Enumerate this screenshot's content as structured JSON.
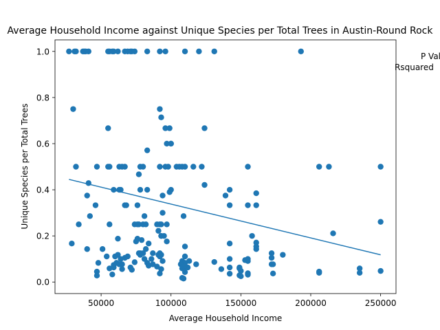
{
  "chart_data": {
    "type": "scatter",
    "title": "Average Household Income against Unique Species per Total Trees in Austin-Round Rock",
    "xlabel": "Average Household Income",
    "ylabel": "Unique Species per Total Trees",
    "xlim": [
      17000,
      261000
    ],
    "ylim": [
      -0.05,
      1.05
    ],
    "xticks": [
      50000,
      100000,
      150000,
      200000,
      250000
    ],
    "yticks": [
      0.0,
      0.2,
      0.4,
      0.6,
      0.8,
      1.0
    ],
    "xtick_labels": [
      "50000",
      "100000",
      "150000",
      "200000",
      "250000"
    ],
    "ytick_labels": [
      "0.0",
      "0.2",
      "0.4",
      "0.6",
      "0.8",
      "1.0"
    ],
    "annotations": [
      "P Value",
      "Rsquared"
    ],
    "grid": false,
    "marker_color": "#1f77b4",
    "line_color": "#1f77b4",
    "regression_line": {
      "x": [
        27000,
        250000
      ],
      "y": [
        0.445,
        0.118
      ]
    },
    "points": {
      "x": [
        27000,
        31000,
        32000,
        37000,
        38000,
        39000,
        41000,
        55000,
        56000,
        58000,
        59000,
        62000,
        67000,
        69000,
        71000,
        72000,
        74000,
        83000,
        92000,
        96000,
        110000,
        120000,
        131000,
        193000,
        30000,
        92000,
        93000,
        96000,
        99000,
        100000,
        55000,
        124000,
        83000,
        97000,
        100000,
        32000,
        47000,
        55000,
        56000,
        63000,
        65000,
        67000,
        78000,
        80000,
        92000,
        96000,
        98000,
        104000,
        106000,
        108000,
        110000,
        116000,
        122000,
        155000,
        206000,
        213000,
        250000,
        41000,
        77000,
        124000,
        59000,
        63000,
        64000,
        78000,
        83000,
        99000,
        100000,
        139000,
        142000,
        161000,
        40000,
        46000,
        67000,
        68000,
        94000,
        42000,
        76000,
        81000,
        94000,
        109000,
        142000,
        34000,
        56000,
        76000,
        77000,
        80000,
        82000,
        90000,
        92000,
        74000,
        93000,
        97000,
        155000,
        161000,
        216000,
        91000,
        93000,
        62000,
        76000,
        79000,
        84000,
        93000,
        95000,
        97000,
        29000,
        40000,
        158000,
        161000,
        75000,
        77000,
        80000,
        82000,
        87000,
        92000,
        110000,
        142000,
        161000,
        51000,
        54000,
        62000,
        78000,
        91000,
        93000,
        172000,
        180000,
        250000,
        60000,
        64000,
        67000,
        69000,
        78000,
        81000,
        86000,
        92000,
        108000,
        110000,
        113000,
        153000,
        155000,
        172000,
        48000,
        59000,
        61000,
        63000,
        65000,
        74000,
        83000,
        94000,
        108000,
        110000,
        118000,
        131000,
        142000,
        149000,
        161000,
        173000,
        56000,
        71000,
        84000,
        90000,
        107000,
        109000,
        112000,
        136000,
        149000,
        172000,
        59000,
        65000,
        72000,
        93000,
        108000,
        109000,
        110000,
        142000,
        150000,
        155000,
        206000,
        235000,
        250000,
        47000,
        58000,
        87000,
        92000,
        110000,
        142000,
        149000,
        155000,
        173000,
        206000,
        235000,
        47000,
        108000,
        109000,
        150000,
        155000
      ],
      "y": [
        1.0,
        1.0,
        1.0,
        1.0,
        1.0,
        1.0,
        1.0,
        1.0,
        1.0,
        1.0,
        1.0,
        1.0,
        1.0,
        1.0,
        1.0,
        1.0,
        1.0,
        1.0,
        1.0,
        1.0,
        1.0,
        1.0,
        1.0,
        1.0,
        0.75,
        0.75,
        0.714,
        0.667,
        0.667,
        0.6,
        0.667,
        0.667,
        0.571,
        0.6,
        0.6,
        0.5,
        0.5,
        0.5,
        0.5,
        0.5,
        0.5,
        0.5,
        0.5,
        0.5,
        0.5,
        0.5,
        0.5,
        0.5,
        0.5,
        0.5,
        0.5,
        0.5,
        0.5,
        0.5,
        0.5,
        0.5,
        0.5,
        0.429,
        0.467,
        0.421,
        0.4,
        0.4,
        0.4,
        0.4,
        0.4,
        0.39,
        0.4,
        0.375,
        0.4,
        0.385,
        0.375,
        0.333,
        0.333,
        0.333,
        0.375,
        0.286,
        0.333,
        0.286,
        0.3,
        0.286,
        0.333,
        0.25,
        0.25,
        0.25,
        0.25,
        0.25,
        0.25,
        0.25,
        0.25,
        0.25,
        0.25,
        0.25,
        0.333,
        0.333,
        0.211,
        0.222,
        0.2,
        0.188,
        0.188,
        0.182,
        0.167,
        0.2,
        0.2,
        0.176,
        0.167,
        0.143,
        0.2,
        0.171,
        0.176,
        0.125,
        0.125,
        0.143,
        0.125,
        0.125,
        0.154,
        0.167,
        0.154,
        0.143,
        0.111,
        0.118,
        0.118,
        0.118,
        0.118,
        0.125,
        0.118,
        0.261,
        0.111,
        0.1,
        0.105,
        0.111,
        0.125,
        0.1,
        0.1,
        0.111,
        0.091,
        0.111,
        0.091,
        0.095,
        0.1,
        0.105,
        0.083,
        0.074,
        0.083,
        0.077,
        0.077,
        0.086,
        0.083,
        0.091,
        0.083,
        0.083,
        0.077,
        0.087,
        0.1,
        0.059,
        0.143,
        0.077,
        0.059,
        0.063,
        0.071,
        0.067,
        0.077,
        0.063,
        0.063,
        0.056,
        0.063,
        0.077,
        0.063,
        0.056,
        0.053,
        0.056,
        0.059,
        0.071,
        0.071,
        0.063,
        0.048,
        0.091,
        0.045,
        0.059,
        0.048,
        0.045,
        0.033,
        0.077,
        0.037,
        0.043,
        0.036,
        0.029,
        0.038,
        0.037,
        0.04,
        0.04,
        0.028,
        0.018,
        0.015,
        0.025,
        0.032
      ]
    }
  }
}
